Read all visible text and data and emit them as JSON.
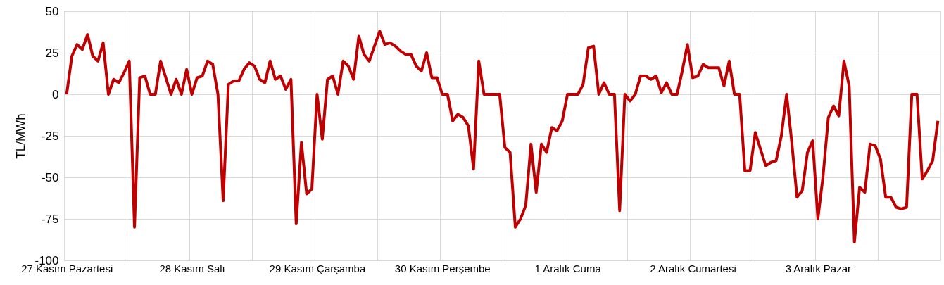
{
  "chart_data": {
    "type": "line",
    "ylabel": "TL/MWh",
    "categories": [
      "27 Kasım Pazartesi",
      null,
      null,
      null,
      null,
      null,
      null,
      null,
      null,
      null,
      null,
      null,
      null,
      null,
      null,
      null,
      null,
      null,
      null,
      null,
      null,
      null,
      null,
      null,
      "28 Kasım Salı",
      null,
      null,
      null,
      null,
      null,
      null,
      null,
      null,
      null,
      null,
      null,
      null,
      null,
      null,
      null,
      null,
      null,
      null,
      null,
      null,
      null,
      null,
      null,
      "29 Kasım Çarşamba",
      null,
      null,
      null,
      null,
      null,
      null,
      null,
      null,
      null,
      null,
      null,
      null,
      null,
      null,
      null,
      null,
      null,
      null,
      null,
      null,
      null,
      null,
      null,
      "30 Kasım Perşembe",
      null,
      null,
      null,
      null,
      null,
      null,
      null,
      null,
      null,
      null,
      null,
      null,
      null,
      null,
      null,
      null,
      null,
      null,
      null,
      null,
      null,
      null,
      null,
      "1 Aralık Cuma",
      null,
      null,
      null,
      null,
      null,
      null,
      null,
      null,
      null,
      null,
      null,
      null,
      null,
      null,
      null,
      null,
      null,
      null,
      null,
      null,
      null,
      null,
      null,
      "2 Aralık Cumartesi",
      null,
      null,
      null,
      null,
      null,
      null,
      null,
      null,
      null,
      null,
      null,
      null,
      null,
      null,
      null,
      null,
      null,
      null,
      null,
      null,
      null,
      null,
      null,
      "3 Aralık Pazar",
      null,
      null,
      null,
      null,
      null,
      null,
      null,
      null,
      null,
      null,
      null,
      null,
      null,
      null,
      null,
      null,
      null,
      null,
      null,
      null,
      null,
      null,
      null
    ],
    "series": [
      {
        "color": "#c00000",
        "values": [
          0,
          23,
          30,
          27,
          36,
          23,
          20,
          31,
          0,
          9,
          7,
          13,
          20,
          -80,
          10,
          11,
          0,
          0,
          20,
          10,
          0,
          9,
          0,
          15,
          0,
          10,
          11,
          20,
          18,
          0,
          -64,
          6,
          8,
          8,
          15,
          19,
          17,
          9,
          7,
          20,
          9,
          11,
          3,
          9,
          -78,
          -29,
          -60,
          -57,
          0,
          -27,
          9,
          11,
          0,
          20,
          17,
          9,
          35,
          24,
          20,
          29,
          38,
          30,
          31,
          29,
          26,
          24,
          24,
          17,
          14,
          25,
          10,
          10,
          0,
          0,
          -16,
          -12,
          -14,
          -19,
          -45,
          20,
          0,
          0,
          0,
          0,
          -32,
          -35,
          -80,
          -75,
          -67,
          -30,
          -59,
          -30,
          -35,
          -20,
          -22,
          -16,
          0,
          0,
          0,
          6,
          28,
          29,
          0,
          7,
          0,
          0,
          -70,
          0,
          -4,
          0,
          11,
          11,
          9,
          11,
          1,
          7,
          0,
          0,
          14,
          30,
          10,
          11,
          18,
          16,
          16,
          16,
          5,
          20,
          0,
          0,
          -46,
          -46,
          -23,
          -33,
          -43,
          -41,
          -40,
          -25,
          0,
          -29,
          -62,
          -58,
          -35,
          -28,
          -75,
          -49,
          -14,
          -7,
          -13,
          20,
          5,
          -89,
          -56,
          -59,
          -30,
          -31,
          -39,
          -62,
          -62,
          -68,
          -69,
          -68,
          0,
          0,
          -51,
          -46,
          -40,
          -16
        ]
      }
    ],
    "ylim": [
      -100,
      50
    ],
    "yticks": [
      -100,
      -75,
      -50,
      -25,
      0,
      25,
      50
    ],
    "grid": true,
    "marker": "none",
    "line_style": "solid"
  }
}
